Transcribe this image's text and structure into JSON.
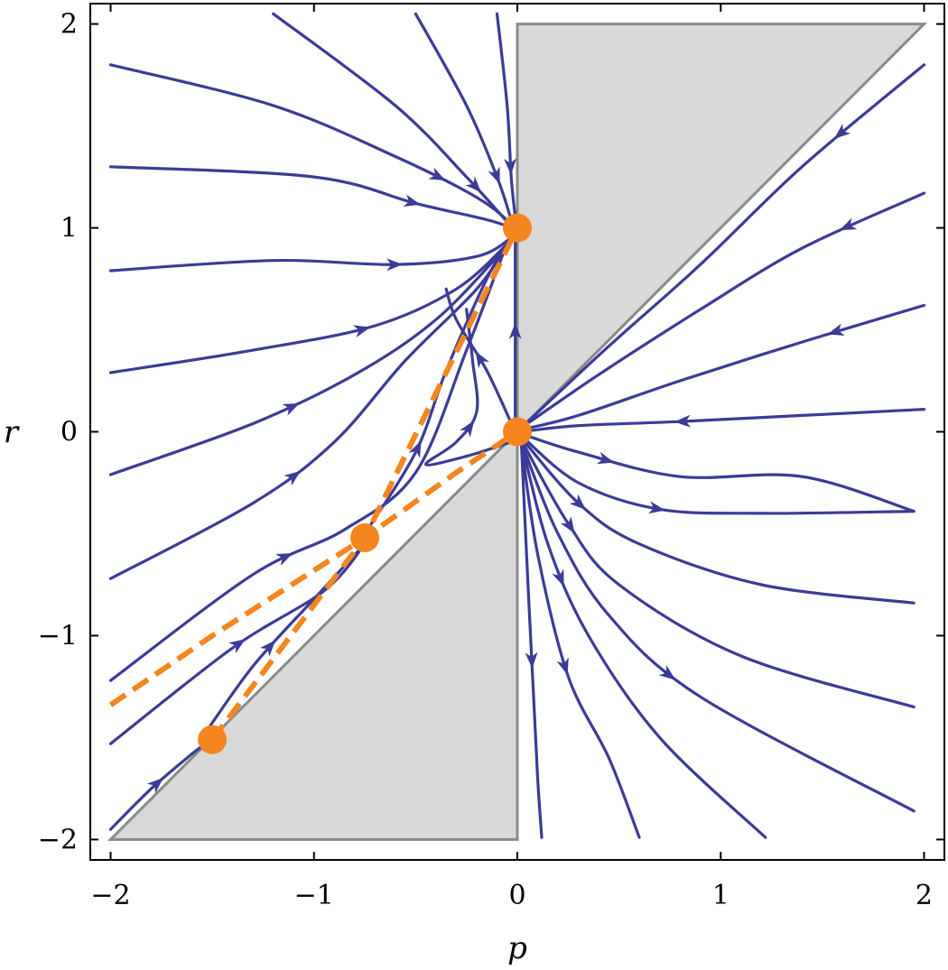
{
  "chart_data": {
    "type": "streamplot",
    "title": "",
    "xlabel": "p",
    "ylabel": "r",
    "xlim": [
      -2.1,
      2.1
    ],
    "ylim": [
      -2.1,
      2.1
    ],
    "xticks": [
      {
        "v": -2,
        "label": "−2"
      },
      {
        "v": -1,
        "label": "−1"
      },
      {
        "v": 0,
        "label": "0"
      },
      {
        "v": 1,
        "label": "1"
      },
      {
        "v": 2,
        "label": "2"
      }
    ],
    "yticks": [
      {
        "v": -2,
        "label": "−2"
      },
      {
        "v": -1,
        "label": "−1"
      },
      {
        "v": 0,
        "label": "0"
      },
      {
        "v": 1,
        "label": "1"
      },
      {
        "v": 2,
        "label": "2"
      }
    ],
    "grid": false,
    "colors": {
      "stream": "#3b3b98",
      "points": "#f5851f",
      "dashed": "#f5851f",
      "region": "#d9d9d9",
      "region_edge": "#8a8a8a"
    },
    "shaded_regions": [
      {
        "name": "upper-region",
        "points": [
          [
            0,
            0
          ],
          [
            0,
            2
          ],
          [
            2,
            2
          ]
        ]
      },
      {
        "name": "lower-region",
        "points": [
          [
            0,
            0
          ],
          [
            0,
            -2
          ],
          [
            -2,
            -2
          ]
        ]
      }
    ],
    "fixed_points": [
      {
        "x": 0,
        "y": 1
      },
      {
        "x": 0,
        "y": 0
      },
      {
        "x": -0.75,
        "y": -0.52
      },
      {
        "x": -1.5,
        "y": -1.51
      }
    ],
    "dashed_curves": [
      [
        [
          -2.0,
          -1.34
        ],
        [
          -1.5,
          -1.0
        ],
        [
          -0.75,
          -0.52
        ],
        [
          -0.3,
          -0.2
        ],
        [
          0,
          0
        ]
      ],
      [
        [
          -1.5,
          -1.51
        ],
        [
          -0.75,
          -0.52
        ],
        [
          0,
          1
        ]
      ]
    ],
    "streamlines": [
      {
        "points": [
          [
            -2.0,
            1.8
          ],
          [
            -1.2,
            1.6
          ],
          [
            -0.6,
            1.35
          ],
          [
            -0.2,
            1.15
          ],
          [
            -0.03,
            1.02
          ]
        ],
        "arrow_at": 0.8
      },
      {
        "points": [
          [
            -2.0,
            1.3
          ],
          [
            -1.0,
            1.25
          ],
          [
            -0.5,
            1.12
          ],
          [
            -0.15,
            1.04
          ],
          [
            -0.03,
            1.0
          ]
        ],
        "arrow_at": 0.75
      },
      {
        "points": [
          [
            -2.0,
            0.79
          ],
          [
            -1.2,
            0.84
          ],
          [
            -0.6,
            0.82
          ],
          [
            -0.2,
            0.86
          ],
          [
            -0.03,
            0.95
          ]
        ],
        "arrow_at": 0.7
      },
      {
        "points": [
          [
            -2.0,
            0.29
          ],
          [
            -1.3,
            0.4
          ],
          [
            -0.7,
            0.52
          ],
          [
            -0.3,
            0.7
          ],
          [
            -0.05,
            0.92
          ]
        ],
        "arrow_at": 0.6
      },
      {
        "points": [
          [
            -2.0,
            -0.21
          ],
          [
            -1.3,
            0.04
          ],
          [
            -0.8,
            0.28
          ],
          [
            -0.4,
            0.55
          ],
          [
            -0.06,
            0.9
          ]
        ],
        "arrow_at": 0.42
      },
      {
        "points": [
          [
            -2.0,
            -0.72
          ],
          [
            -1.3,
            -0.35
          ],
          [
            -0.9,
            -0.05
          ],
          [
            -0.55,
            0.35
          ],
          [
            -0.2,
            0.7
          ],
          [
            -0.05,
            0.92
          ]
        ],
        "arrow_at": 0.4
      },
      {
        "points": [
          [
            -2.0,
            -1.22
          ],
          [
            -1.3,
            -0.7
          ],
          [
            -0.85,
            -0.48
          ],
          [
            -0.5,
            -0.2
          ],
          [
            -0.25,
            0.4
          ],
          [
            -0.06,
            0.9
          ]
        ],
        "arrow_at": 0.35
      },
      {
        "points": [
          [
            -2.0,
            -1.53
          ],
          [
            -1.4,
            -1.06
          ],
          [
            -0.95,
            -0.78
          ],
          [
            -0.75,
            -0.55
          ]
        ],
        "arrow_at": 0.5
      },
      {
        "points": [
          [
            -2.0,
            -1.95
          ],
          [
            -1.8,
            -1.75
          ],
          [
            -1.6,
            -1.58
          ],
          [
            -1.52,
            -1.52
          ]
        ],
        "arrow_at": 0.5
      },
      {
        "points": [
          [
            -1.55,
            -1.5
          ],
          [
            -1.3,
            -1.15
          ],
          [
            -1.0,
            -0.82
          ],
          [
            -0.75,
            -0.55
          ]
        ],
        "arrow_at": 0.45
      },
      {
        "points": [
          [
            -0.75,
            -0.5
          ],
          [
            -0.5,
            -0.1
          ],
          [
            -0.35,
            0.3
          ],
          [
            -0.15,
            0.75
          ],
          [
            -0.02,
            0.97
          ]
        ],
        "arrow_at": 0.3
      },
      {
        "points": [
          [
            -0.03,
            -0.05
          ],
          [
            -0.25,
            -0.12
          ],
          [
            -0.45,
            -0.16
          ],
          [
            -0.3,
            -0.05
          ],
          [
            -0.2,
            0.1
          ],
          [
            -0.22,
            0.35
          ],
          [
            -0.25,
            0.6
          ]
        ],
        "arrow_at": 0.55
      },
      {
        "points": [
          [
            -0.02,
            0.02
          ],
          [
            -0.15,
            0.3
          ],
          [
            -0.3,
            0.55
          ],
          [
            -0.35,
            0.7
          ]
        ],
        "arrow_at": 0.5
      },
      {
        "points": [
          [
            -1.2,
            2.05
          ],
          [
            -0.6,
            1.6
          ],
          [
            -0.25,
            1.25
          ],
          [
            -0.05,
            1.03
          ]
        ],
        "arrow_at": 0.85
      },
      {
        "points": [
          [
            -0.5,
            2.05
          ],
          [
            -0.25,
            1.6
          ],
          [
            -0.1,
            1.25
          ],
          [
            -0.03,
            1.04
          ]
        ],
        "arrow_at": 0.8
      },
      {
        "points": [
          [
            -0.1,
            2.05
          ],
          [
            -0.05,
            1.6
          ],
          [
            -0.03,
            1.25
          ],
          [
            -0.01,
            1.05
          ]
        ],
        "arrow_at": 0.75
      },
      {
        "points": [
          [
            -0.01,
            0.05
          ],
          [
            -0.01,
            0.5
          ],
          [
            -0.01,
            0.94
          ]
        ],
        "arrow_at": 0.5
      },
      {
        "points": [
          [
            2.0,
            1.8
          ],
          [
            1.4,
            1.3
          ],
          [
            0.9,
            0.82
          ],
          [
            0.45,
            0.42
          ],
          [
            0.02,
            0.02
          ]
        ],
        "arrow_at": 0.2
      },
      {
        "points": [
          [
            2.0,
            1.17
          ],
          [
            1.4,
            0.9
          ],
          [
            0.9,
            0.6
          ],
          [
            0.4,
            0.28
          ],
          [
            0.02,
            0.02
          ]
        ],
        "arrow_at": 0.18
      },
      {
        "points": [
          [
            2.0,
            0.62
          ],
          [
            1.4,
            0.44
          ],
          [
            0.8,
            0.25
          ],
          [
            0.3,
            0.08
          ],
          [
            0.02,
            0.01
          ]
        ],
        "arrow_at": 0.22
      },
      {
        "points": [
          [
            2.0,
            0.11
          ],
          [
            1.4,
            0.08
          ],
          [
            0.8,
            0.05
          ],
          [
            0.3,
            0.03
          ],
          [
            0.02,
            0.0
          ]
        ],
        "arrow_at": 0.6
      },
      {
        "points": [
          [
            0.02,
            -0.01
          ],
          [
            0.3,
            -0.1
          ],
          [
            0.8,
            -0.22
          ],
          [
            1.4,
            -0.22
          ],
          [
            1.95,
            -0.39
          ]
        ],
        "arrow_at": 0.22
      },
      {
        "points": [
          [
            0.02,
            -0.02
          ],
          [
            0.3,
            -0.25
          ],
          [
            0.7,
            -0.38
          ],
          [
            1.2,
            -0.4
          ],
          [
            1.95,
            -0.39
          ]
        ],
        "arrow_at": 0.38
      },
      {
        "points": [
          [
            0.02,
            -0.03
          ],
          [
            0.3,
            -0.35
          ],
          [
            0.6,
            -0.55
          ],
          [
            1.2,
            -0.75
          ],
          [
            1.95,
            -0.84
          ]
        ],
        "arrow_at": 0.2
      },
      {
        "points": [
          [
            0.02,
            -0.04
          ],
          [
            0.25,
            -0.45
          ],
          [
            0.5,
            -0.75
          ],
          [
            1.1,
            -1.1
          ],
          [
            1.95,
            -1.35
          ]
        ],
        "arrow_at": 0.2
      },
      {
        "points": [
          [
            0.02,
            -0.05
          ],
          [
            0.2,
            -0.5
          ],
          [
            0.45,
            -0.9
          ],
          [
            0.9,
            -1.3
          ],
          [
            1.95,
            -1.86
          ]
        ],
        "arrow_at": 0.5
      },
      {
        "points": [
          [
            0.02,
            -0.05
          ],
          [
            0.15,
            -0.55
          ],
          [
            0.35,
            -1.0
          ],
          [
            0.7,
            -1.5
          ],
          [
            1.22,
            -1.99
          ]
        ],
        "arrow_at": 0.3
      },
      {
        "points": [
          [
            0.02,
            -0.06
          ],
          [
            0.1,
            -0.6
          ],
          [
            0.25,
            -1.2
          ],
          [
            0.45,
            -1.6
          ],
          [
            0.6,
            -1.99
          ]
        ],
        "arrow_at": 0.55
      },
      {
        "points": [
          [
            0.02,
            -0.06
          ],
          [
            0.05,
            -0.7
          ],
          [
            0.08,
            -1.3
          ],
          [
            0.1,
            -1.7
          ],
          [
            0.12,
            -1.99
          ]
        ],
        "arrow_at": 0.55
      }
    ]
  }
}
